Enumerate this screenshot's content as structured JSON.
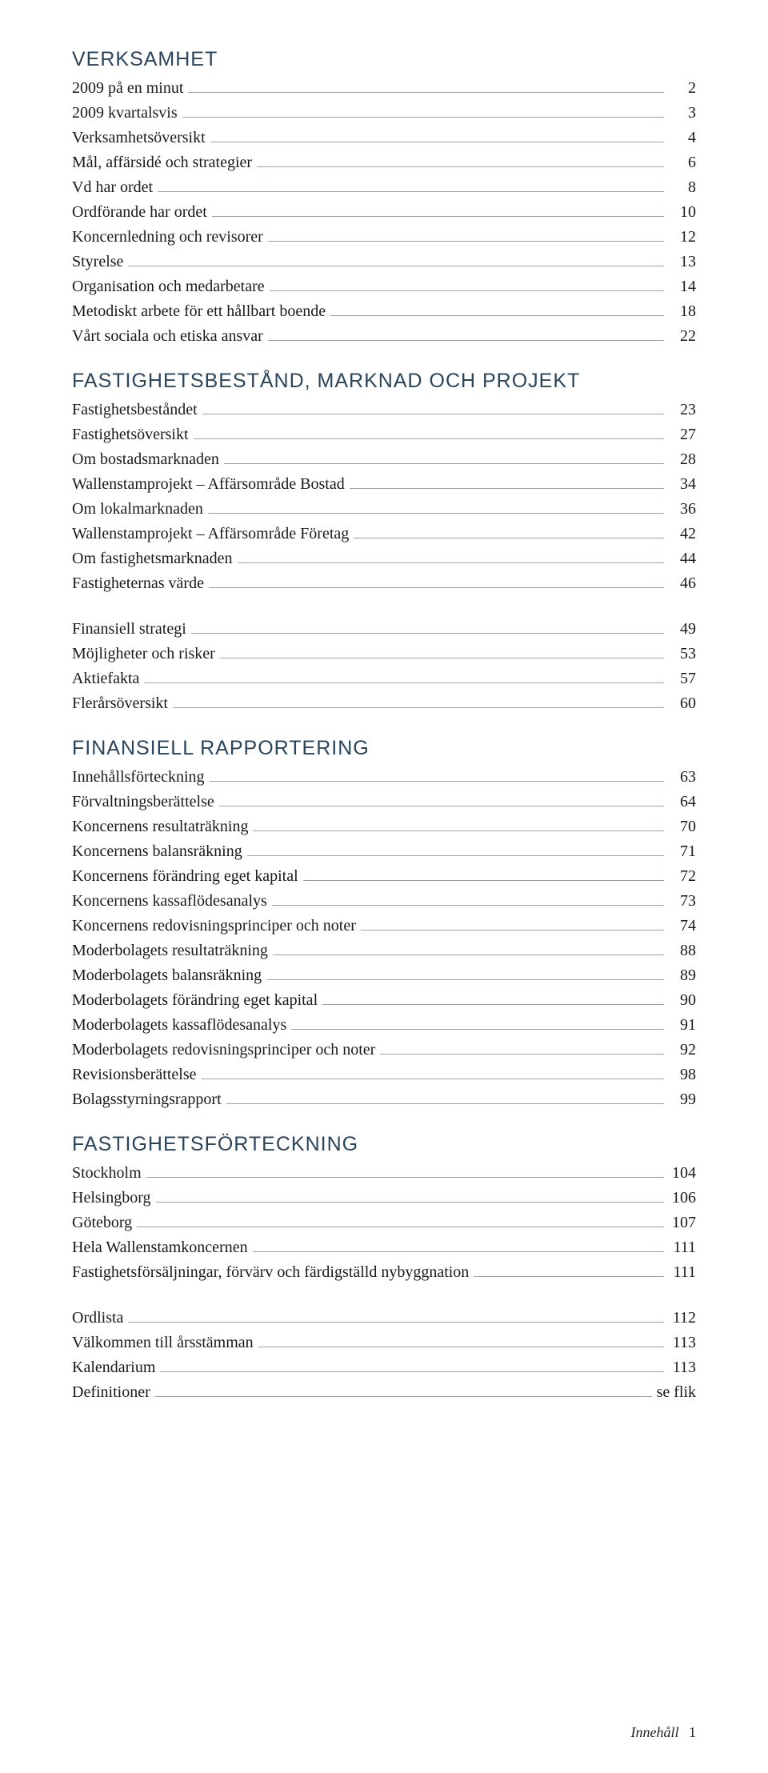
{
  "sections": [
    {
      "title": "VERKSAMHET",
      "items": [
        {
          "label": "2009 på en minut",
          "page": "2"
        },
        {
          "label": "2009 kvartalsvis",
          "page": "3"
        },
        {
          "label": "Verksamhetsöversikt",
          "page": "4"
        },
        {
          "label": "Mål, affärsidé och strategier",
          "page": "6"
        },
        {
          "label": "Vd har ordet",
          "page": "8"
        },
        {
          "label": "Ordförande har ordet",
          "page": "10"
        },
        {
          "label": "Koncernledning och revisorer",
          "page": "12"
        },
        {
          "label": "Styrelse",
          "page": "13"
        },
        {
          "label": "Organisation och medarbetare",
          "page": "14"
        },
        {
          "label": "Metodiskt arbete för ett hållbart boende",
          "page": "18"
        },
        {
          "label": "Vårt sociala och etiska ansvar",
          "page": "22"
        }
      ]
    },
    {
      "title": "FASTIGHETSBESTÅND, MARKNAD OCH PROJEKT",
      "items": [
        {
          "label": "Fastighetsbeståndet",
          "page": "23"
        },
        {
          "label": "Fastighetsöversikt",
          "page": "27"
        },
        {
          "label": "Om bostadsmarknaden",
          "page": "28"
        },
        {
          "label": "Wallenstamprojekt – Affärsområde Bostad",
          "page": "34"
        },
        {
          "label": "Om lokalmarknaden",
          "page": "36"
        },
        {
          "label": "Wallenstamprojekt – Affärsområde Företag",
          "page": "42"
        },
        {
          "label": "Om fastighetsmarknaden",
          "page": "44"
        },
        {
          "label": "Fastigheternas värde",
          "page": "46"
        }
      ]
    },
    {
      "title": null,
      "items": [
        {
          "label": "Finansiell strategi",
          "page": "49"
        },
        {
          "label": "Möjligheter och risker",
          "page": "53"
        },
        {
          "label": "Aktiefakta",
          "page": "57"
        },
        {
          "label": "Flerårsöversikt",
          "page": "60"
        }
      ]
    },
    {
      "title": "FINANSIELL RAPPORTERING",
      "items": [
        {
          "label": "Innehållsförteckning",
          "page": "63"
        },
        {
          "label": "Förvaltningsberättelse",
          "page": "64"
        },
        {
          "label": "Koncernens resultaträkning",
          "page": "70"
        },
        {
          "label": "Koncernens balansräkning",
          "page": "71"
        },
        {
          "label": "Koncernens förändring eget kapital",
          "page": "72"
        },
        {
          "label": "Koncernens kassaflödesanalys",
          "page": "73"
        },
        {
          "label": "Koncernens redovisningsprinciper och noter",
          "page": "74"
        },
        {
          "label": "Moderbolagets resultaträkning",
          "page": "88"
        },
        {
          "label": "Moderbolagets balansräkning",
          "page": "89"
        },
        {
          "label": "Moderbolagets förändring eget kapital",
          "page": "90"
        },
        {
          "label": "Moderbolagets kassaflödesanalys",
          "page": "91"
        },
        {
          "label": "Moderbolagets redovisningsprinciper och noter",
          "page": "92"
        },
        {
          "label": "Revisionsberättelse",
          "page": "98"
        },
        {
          "label": "Bolagsstyrningsrapport",
          "page": "99"
        }
      ]
    },
    {
      "title": "FASTIGHETSFÖRTECKNING",
      "items": [
        {
          "label": "Stockholm",
          "page": "104"
        },
        {
          "label": "Helsingborg",
          "page": "106"
        },
        {
          "label": "Göteborg",
          "page": "107"
        },
        {
          "label": "Hela Wallenstamkoncernen",
          "page": "111"
        },
        {
          "label": "Fastighetsförsäljningar, förvärv och färdigställd nybyggnation",
          "page": "111"
        }
      ]
    },
    {
      "title": null,
      "items": [
        {
          "label": "Ordlista",
          "page": "112"
        },
        {
          "label": "Välkommen till årsstämman",
          "page": "113"
        },
        {
          "label": "Kalendarium",
          "page": "113"
        },
        {
          "label": "Definitioner",
          "page": "se flik"
        }
      ]
    }
  ],
  "footer": {
    "label": "Innehåll",
    "page": "1"
  }
}
